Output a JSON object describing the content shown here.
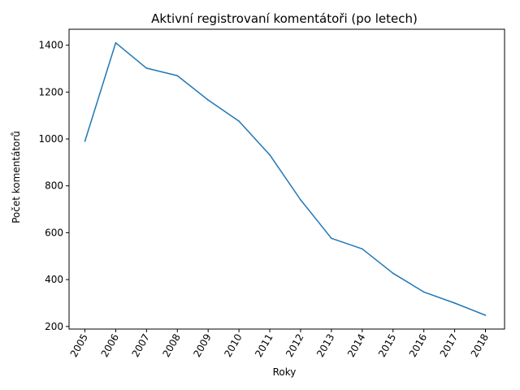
{
  "chart_data": {
    "type": "line",
    "title": "Aktivní registrovaní komentátoři (po letech)",
    "xlabel": "Roky",
    "ylabel": "Počet komentátorů",
    "x": [
      "2005",
      "2006",
      "2007",
      "2008",
      "2009",
      "2010",
      "2011",
      "2012",
      "2013",
      "2014",
      "2015",
      "2016",
      "2017",
      "2018"
    ],
    "series": [
      {
        "values": [
          990,
          1410,
          1302,
          1270,
          1166,
          1076,
          932,
          740,
          576,
          531,
          427,
          347,
          300,
          248
        ],
        "color": "#1f77b4"
      }
    ],
    "yticks": [
      200,
      400,
      600,
      800,
      1000,
      1200,
      1400
    ],
    "ylim": [
      189,
      1468
    ],
    "grid": false,
    "legend": "none",
    "xtick_rotation": 60
  }
}
